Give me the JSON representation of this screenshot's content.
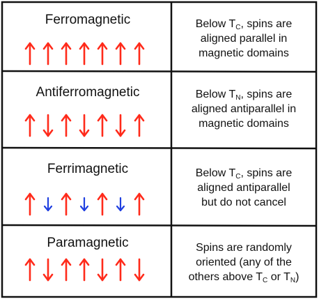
{
  "colors": {
    "arrow_red": "#ff2a1a",
    "arrow_blue": "#1f3fe0",
    "border": "#111111"
  },
  "rows": [
    {
      "title": "Ferromagnetic",
      "arrows": [
        {
          "dir": "up",
          "size": "big",
          "color": "red"
        },
        {
          "dir": "up",
          "size": "big",
          "color": "red"
        },
        {
          "dir": "up",
          "size": "big",
          "color": "red"
        },
        {
          "dir": "up",
          "size": "big",
          "color": "red"
        },
        {
          "dir": "up",
          "size": "big",
          "color": "red"
        },
        {
          "dir": "up",
          "size": "big",
          "color": "red"
        },
        {
          "dir": "up",
          "size": "big",
          "color": "red"
        }
      ],
      "desc": {
        "line1_pre": "Below T",
        "line1_sub": "C",
        "line1_post": ", spins are",
        "line2": "aligned parallel in",
        "line3": "magnetic domains"
      }
    },
    {
      "title": "Antiferromagnetic",
      "arrows": [
        {
          "dir": "up",
          "size": "big",
          "color": "red"
        },
        {
          "dir": "down",
          "size": "big",
          "color": "red"
        },
        {
          "dir": "up",
          "size": "big",
          "color": "red"
        },
        {
          "dir": "down",
          "size": "big",
          "color": "red"
        },
        {
          "dir": "up",
          "size": "big",
          "color": "red"
        },
        {
          "dir": "down",
          "size": "big",
          "color": "red"
        },
        {
          "dir": "up",
          "size": "big",
          "color": "red"
        }
      ],
      "desc": {
        "line1_pre": "Below T",
        "line1_sub": "N",
        "line1_post": ", spins are",
        "line2": "aligned antiparallel in",
        "line3": "magnetic domains"
      }
    },
    {
      "title": "Ferrimagnetic",
      "arrows": [
        {
          "dir": "up",
          "size": "big",
          "color": "red"
        },
        {
          "dir": "down",
          "size": "small",
          "color": "blue"
        },
        {
          "dir": "up",
          "size": "big",
          "color": "red"
        },
        {
          "dir": "down",
          "size": "small",
          "color": "blue"
        },
        {
          "dir": "up",
          "size": "big",
          "color": "red"
        },
        {
          "dir": "down",
          "size": "small",
          "color": "blue"
        },
        {
          "dir": "up",
          "size": "big",
          "color": "red"
        }
      ],
      "desc": {
        "line1_pre": "Below T",
        "line1_sub": "C",
        "line1_post": ", spins are",
        "line2": "aligned antiparallel",
        "line3": "but do not cancel"
      }
    },
    {
      "title": "Paramagnetic",
      "arrows": [
        {
          "dir": "up",
          "size": "big",
          "color": "red"
        },
        {
          "dir": "down",
          "size": "big",
          "color": "red"
        },
        {
          "dir": "up",
          "size": "big",
          "color": "red"
        },
        {
          "dir": "up",
          "size": "big",
          "color": "red"
        },
        {
          "dir": "down",
          "size": "big",
          "color": "red"
        },
        {
          "dir": "up",
          "size": "big",
          "color": "red"
        },
        {
          "dir": "down",
          "size": "big",
          "color": "red"
        }
      ],
      "desc": {
        "line1": "Spins are randomly",
        "line2": "oriented (any of the",
        "line3_pre": "others above T",
        "line3_sub1": "C",
        "line3_mid": " or T",
        "line3_sub2": "N",
        "line3_post": ")"
      }
    }
  ]
}
